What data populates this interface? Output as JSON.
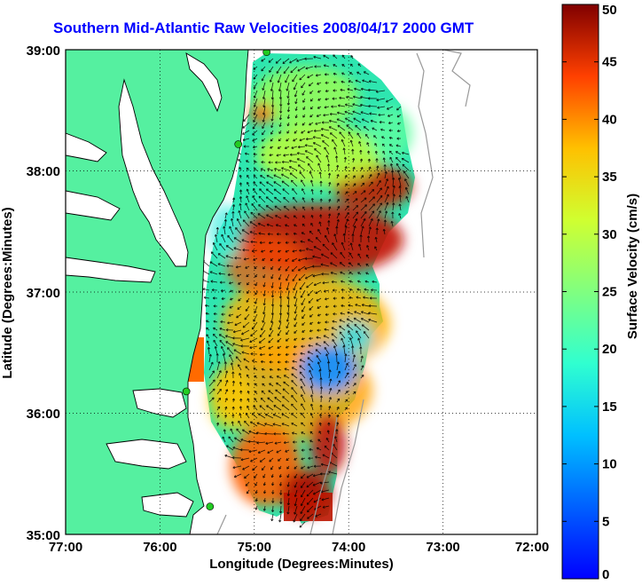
{
  "title": "Southern Mid-Atlantic Raw Velocities 2008/04/17 2000 GMT",
  "x_axis": {
    "label": "Longitude (Degrees:Minutes)",
    "ticks": [
      "77:00",
      "76:00",
      "75:00",
      "74:00",
      "73:00",
      "72:00"
    ]
  },
  "y_axis": {
    "label": "Latitude (Degrees:Minutes)",
    "ticks": [
      "39:00",
      "38:00",
      "37:00",
      "36:00",
      "35:00"
    ]
  },
  "colorbar": {
    "label": "Surface Velocity (cm/s)",
    "ticks": [
      "50",
      "45",
      "40",
      "35",
      "30",
      "25",
      "20",
      "15",
      "10",
      "5",
      "0"
    ],
    "min": 0,
    "max": 50,
    "colormap": "jet"
  },
  "colors": {
    "land": "#55f0a0",
    "title": "#0000ff",
    "grid": "#000000",
    "coast_contour": "#999999",
    "station_marker": "#22cc22"
  },
  "chart_data": {
    "type": "heatmap",
    "title": "Southern Mid-Atlantic Raw Velocities 2008/04/17 2000 GMT",
    "xlabel": "Longitude (Degrees:Minutes)",
    "ylabel": "Latitude (Degrees:Minutes)",
    "xlim": [
      -77,
      -72
    ],
    "ylim": [
      35,
      39
    ],
    "grid": true,
    "value_label": "Surface Velocity (cm/s)",
    "value_range": [
      0,
      50
    ],
    "stations": [
      {
        "lon": -74.87,
        "lat": 38.98
      },
      {
        "lon": -75.17,
        "lat": 38.22
      },
      {
        "lon": -75.72,
        "lat": 36.18
      },
      {
        "lon": -75.47,
        "lat": 35.23
      }
    ]
  }
}
